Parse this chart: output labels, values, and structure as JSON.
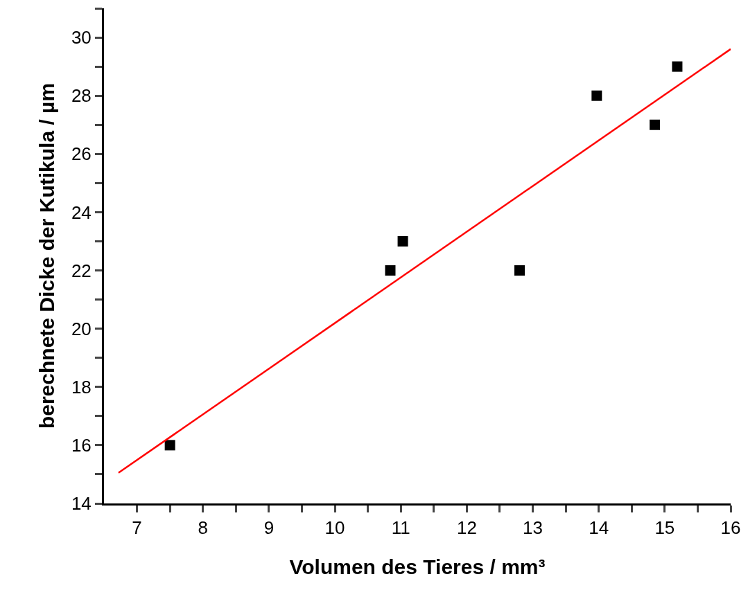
{
  "chart_data": {
    "type": "scatter",
    "xlabel": "Volumen des Tieres / mm³",
    "ylabel": "berechnete Dicke der Kutikula / µm",
    "x": [
      7.5,
      10.84,
      11.03,
      12.8,
      13.97,
      14.85,
      15.19
    ],
    "series": [
      {
        "color": "#000000",
        "marker": "square",
        "values": [
          16,
          22,
          23,
          22,
          28,
          27,
          29
        ]
      },
      {
        "type": "line",
        "color": "#ff0000",
        "x": [
          6.72,
          16
        ],
        "values": [
          15.05,
          29.6
        ],
        "marker": "none",
        "line_style": "solid"
      }
    ],
    "xlim": [
      6.5,
      16
    ],
    "ylim": [
      14,
      31
    ],
    "xticks": [
      7,
      {
        "value": 7.5,
        "label": null
      },
      8,
      {
        "value": 8.5,
        "label": null
      },
      9,
      {
        "value": 9.5,
        "label": null
      },
      10,
      {
        "value": 10.5,
        "label": null
      },
      11,
      {
        "value": 11.5,
        "label": null
      },
      12,
      {
        "value": 12.5,
        "label": null
      },
      13,
      {
        "value": 13.5,
        "label": null
      },
      14,
      {
        "value": 14.5,
        "label": null
      },
      15,
      {
        "value": 15.5,
        "label": null
      },
      16
    ],
    "yticks": [
      14,
      {
        "value": 15,
        "label": null
      },
      16,
      {
        "value": 17,
        "label": null
      },
      18,
      {
        "value": 19,
        "label": null
      },
      20,
      {
        "value": 21,
        "label": null
      },
      22,
      {
        "value": 23,
        "label": null
      },
      24,
      {
        "value": 25,
        "label": null
      },
      26,
      {
        "value": 27,
        "label": null
      },
      28,
      {
        "value": 29,
        "label": null
      },
      30,
      {
        "value": 31,
        "label": null
      }
    ],
    "grid": false
  }
}
